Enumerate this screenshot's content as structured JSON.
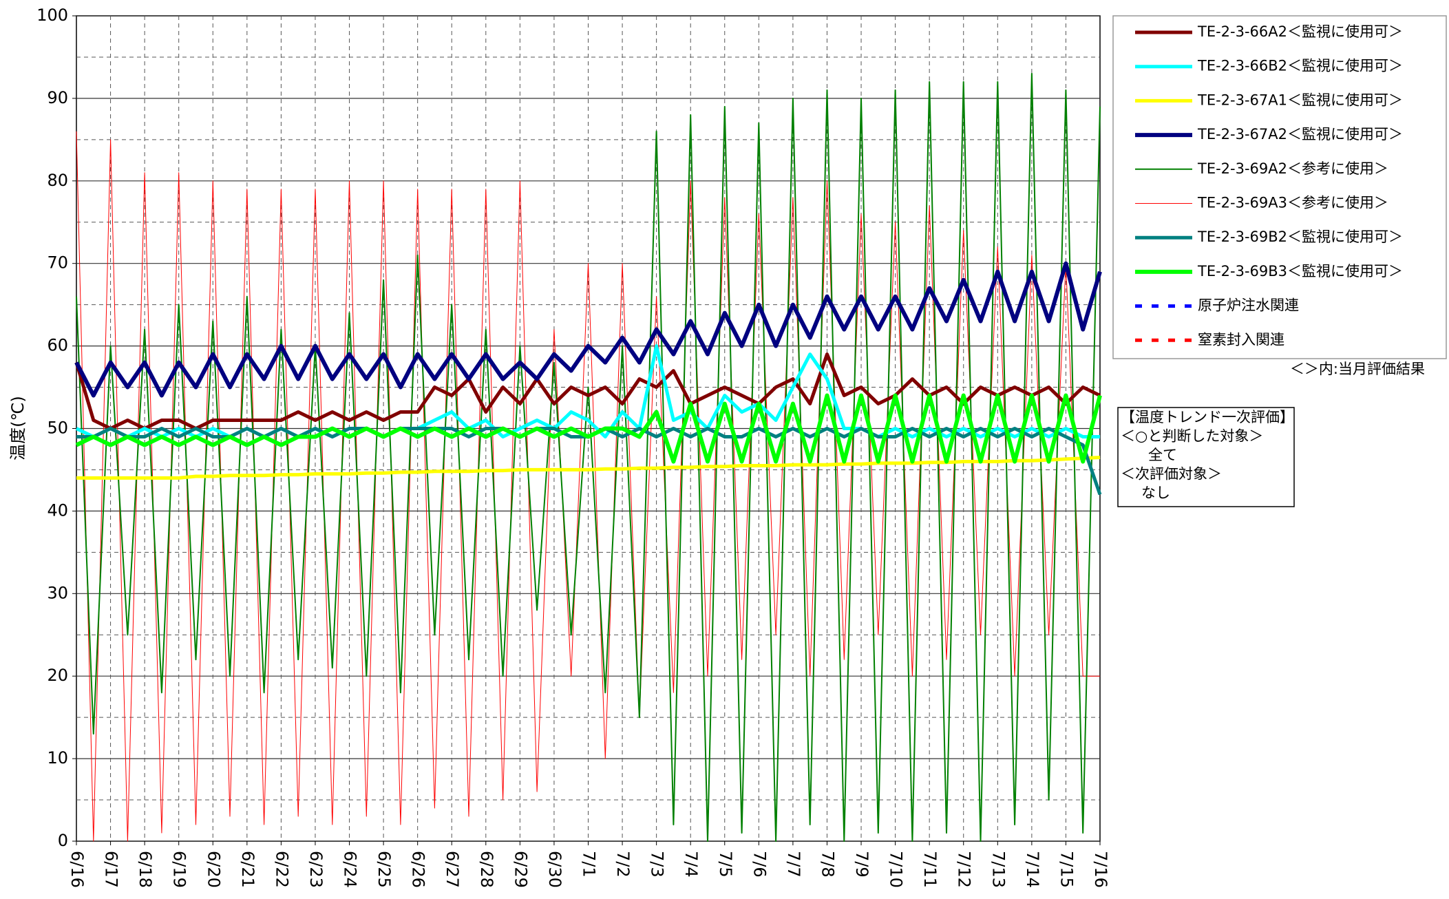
{
  "chart_data": {
    "type": "line",
    "ylabel": "温度(℃)",
    "ylim": [
      0,
      100
    ],
    "yticks": [
      0,
      10,
      20,
      30,
      40,
      50,
      60,
      70,
      80,
      90,
      100
    ],
    "minor_yticks": [
      5,
      15,
      25,
      35,
      45,
      55,
      65,
      75,
      85,
      95
    ],
    "grid": true,
    "legend": "right",
    "categories": [
      "6/16",
      null,
      "6/17",
      null,
      "6/18",
      null,
      "6/19",
      null,
      "6/20",
      null,
      "6/21",
      null,
      "6/22",
      null,
      "6/23",
      null,
      "6/24",
      null,
      "6/25",
      null,
      "6/26",
      null,
      "6/27",
      null,
      "6/28",
      null,
      "6/29",
      null,
      "6/30",
      null,
      "7/1",
      null,
      "7/2",
      null,
      "7/3",
      null,
      "7/4",
      null,
      "7/5",
      null,
      "7/6",
      null,
      "7/7",
      null,
      "7/8",
      null,
      "7/9",
      null,
      "7/10",
      null,
      "7/11",
      null,
      "7/12",
      null,
      "7/13",
      null,
      "7/14",
      null,
      "7/15",
      null,
      "7/16"
    ],
    "series": [
      {
        "name": "TE-2-3-66A2＜監視に使用可＞",
        "color": "#800000",
        "width": 5,
        "values": [
          58,
          51,
          50,
          51,
          50,
          51,
          51,
          50,
          51,
          51,
          51,
          51,
          51,
          52,
          51,
          52,
          51,
          52,
          51,
          52,
          52,
          55,
          54,
          56,
          52,
          55,
          53,
          56,
          53,
          55,
          54,
          55,
          53,
          56,
          55,
          57,
          53,
          54,
          55,
          54,
          53,
          55,
          56,
          53,
          59,
          54,
          55,
          53,
          54,
          56,
          54,
          55,
          53,
          55,
          54,
          55,
          54,
          55,
          53,
          55,
          54
        ]
      },
      {
        "name": "TE-2-3-66B2＜監視に使用可＞",
        "color": "#00ffff",
        "width": 5,
        "values": [
          50,
          49,
          50,
          49,
          50,
          49,
          50,
          49,
          50,
          49,
          50,
          49,
          50,
          49,
          50,
          49,
          50,
          50,
          49,
          50,
          50,
          51,
          52,
          50,
          51,
          49,
          50,
          51,
          50,
          52,
          51,
          49,
          52,
          50,
          60,
          51,
          52,
          50,
          54,
          52,
          53,
          51,
          55,
          59,
          56,
          50,
          50,
          49,
          50,
          49,
          50,
          49,
          50,
          49,
          50,
          49,
          50,
          49,
          50,
          49,
          49
        ]
      },
      {
        "name": "TE-2-3-67A1＜監視に使用可＞",
        "color": "#ffff00",
        "width": 5,
        "values": [
          44,
          44,
          44,
          44,
          44,
          44,
          44,
          44.2,
          44.2,
          44.3,
          44.3,
          44.3,
          44.4,
          44.4,
          44.5,
          44.5,
          44.5,
          44.6,
          44.6,
          44.7,
          44.7,
          44.8,
          44.8,
          44.8,
          44.9,
          44.9,
          45,
          45,
          45,
          45,
          45,
          45.1,
          45.1,
          45.2,
          45.2,
          45.3,
          45.3,
          45.4,
          45.4,
          45.5,
          45.5,
          45.5,
          45.6,
          45.6,
          45.6,
          45.7,
          45.7,
          45.8,
          45.8,
          45.8,
          45.9,
          45.9,
          46,
          46,
          46,
          46.1,
          46.1,
          46.2,
          46.3,
          46.4,
          46.5
        ]
      },
      {
        "name": "TE-2-3-67A2＜監視に使用可＞",
        "color": "#000080",
        "width": 6,
        "values": [
          58,
          54,
          58,
          55,
          58,
          54,
          58,
          55,
          59,
          55,
          59,
          56,
          60,
          56,
          60,
          56,
          59,
          56,
          59,
          55,
          59,
          56,
          59,
          56,
          59,
          56,
          58,
          56,
          59,
          57,
          60,
          58,
          61,
          58,
          62,
          59,
          63,
          59,
          64,
          60,
          65,
          60,
          65,
          61,
          66,
          62,
          66,
          62,
          66,
          62,
          67,
          63,
          68,
          63,
          69,
          63,
          69,
          63,
          70,
          62,
          69
        ]
      },
      {
        "name": "TE-2-3-69A2＜参考に使用＞",
        "color": "#008000",
        "width": 2,
        "values": [
          66,
          13,
          60,
          25,
          62,
          18,
          65,
          22,
          63,
          20,
          66,
          18,
          62,
          22,
          60,
          21,
          64,
          20,
          68,
          18,
          71,
          25,
          65,
          22,
          62,
          20,
          60,
          28,
          58,
          25,
          55,
          18,
          60,
          15,
          86,
          2,
          88,
          0,
          89,
          1,
          87,
          0,
          90,
          2,
          91,
          0,
          90,
          1,
          91,
          0,
          92,
          1,
          92,
          0,
          92,
          2,
          93,
          5,
          91,
          1,
          89
        ]
      },
      {
        "name": "TE-2-3-69A3＜参考に使用＞",
        "color": "#ff0000",
        "width": 1,
        "values": [
          86,
          0,
          85,
          0,
          81,
          1,
          81,
          2,
          80,
          3,
          79,
          2,
          79,
          3,
          79,
          2,
          80,
          3,
          80,
          2,
          79,
          4,
          79,
          3,
          79,
          5,
          80,
          6,
          62,
          20,
          70,
          10,
          70,
          15,
          66,
          18,
          80,
          20,
          78,
          22,
          76,
          25,
          78,
          20,
          80,
          22,
          76,
          25,
          75,
          20,
          77,
          22,
          74,
          25,
          72,
          20,
          71,
          25,
          70,
          20,
          20
        ]
      },
      {
        "name": "TE-2-3-69B2＜監視に使用可＞",
        "color": "#008080",
        "width": 5,
        "values": [
          49,
          49,
          50,
          49,
          49,
          50,
          49,
          50,
          49,
          49,
          50,
          49,
          50,
          49,
          50,
          49,
          50,
          50,
          49,
          50,
          50,
          50,
          50,
          49,
          50,
          50,
          49,
          50,
          50,
          49,
          49,
          50,
          49,
          50,
          49,
          50,
          49,
          50,
          49,
          49,
          50,
          49,
          50,
          49,
          50,
          49,
          50,
          49,
          49,
          50,
          49,
          50,
          49,
          50,
          49,
          50,
          49,
          50,
          49,
          48,
          42
        ]
      },
      {
        "name": "TE-2-3-69B3＜監視に使用可＞",
        "color": "#00ff00",
        "width": 6,
        "values": [
          48,
          49,
          48,
          49,
          48,
          49,
          48,
          49,
          48,
          49,
          48,
          49,
          48,
          49,
          49,
          50,
          49,
          50,
          49,
          50,
          49,
          50,
          49,
          50,
          49,
          50,
          49,
          50,
          49,
          50,
          49,
          50,
          50,
          49,
          52,
          46,
          53,
          46,
          53,
          46,
          53,
          46,
          53,
          46,
          54,
          46,
          54,
          46,
          54,
          46,
          54,
          46,
          54,
          46,
          54,
          46,
          54,
          46,
          54,
          46,
          54
        ]
      }
    ],
    "events": [
      {
        "name": "原子炉注水関連",
        "color": "#0000ff"
      },
      {
        "name": "窒素封入関連",
        "color": "#ff0000"
      }
    ],
    "note": "＜＞内:当月評価結果",
    "evaluation_box": [
      "【温度トレンド一次評価】",
      "＜○と判断した対象＞",
      "全て",
      "＜次評価対象＞",
      "なし"
    ]
  }
}
